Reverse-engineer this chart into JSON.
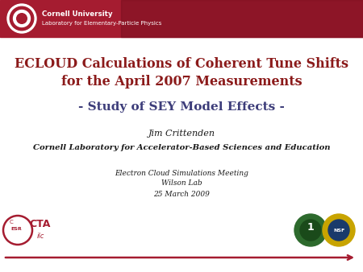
{
  "bg_color": "#ffffff",
  "header_color": "#a51c30",
  "bottom_line_color": "#a51c30",
  "title_line1": "ECLOUD Calculations of Coherent Tune Shifts",
  "title_line2": "for the April 2007 Measurements",
  "subtitle": "- Study of SEY Model Effects -",
  "author": "Jim Crittenden",
  "affiliation": "Cornell Laboratory for Accelerator-Based Sciences and Education",
  "event_line1": "Electron Cloud Simulations Meeting",
  "event_line2": "Wilson Lab",
  "event_line3": "25 March 2009",
  "title_color": "#8b1a1a",
  "subtitle_color": "#3d3d7a",
  "author_color": "#1a1a1a",
  "affiliation_color": "#1a1a1a",
  "event_color": "#1a1a1a",
  "cornell_text1": "Cornell University",
  "cornell_text2": "Laboratory for Elementary-Particle Physics"
}
